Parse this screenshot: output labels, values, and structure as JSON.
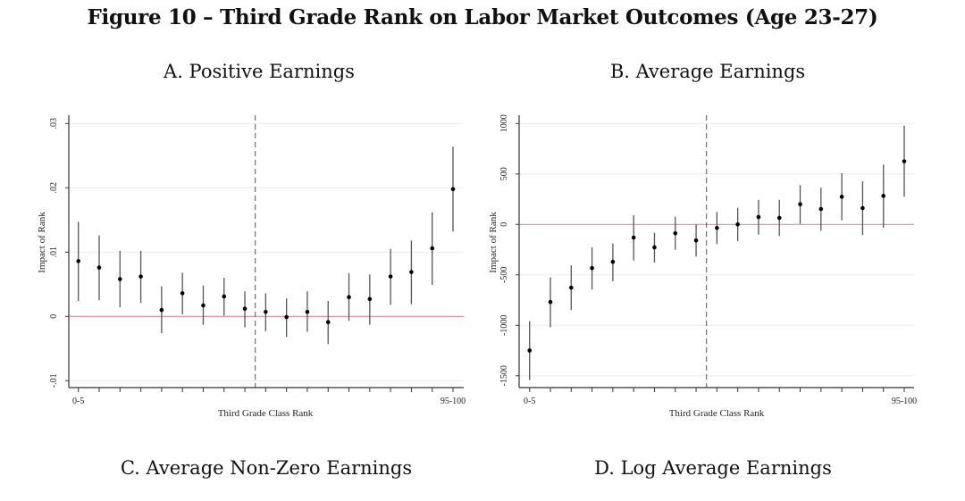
{
  "figure_title": "Figure 10 – Third Grade Rank on Labor Market Outcomes (Age 23-27)",
  "panel_titles": {
    "a": "A. Positive Earnings",
    "b": "B. Average Earnings",
    "c": "C. Average Non-Zero Earnings",
    "d": "D. Log Average Earnings"
  },
  "colors": {
    "zero_line": "#e08a96",
    "grid": "#ececec",
    "point": "#000000",
    "ci": "#555555",
    "axis": "#333333",
    "dashed": "#555555"
  },
  "chart_data": [
    {
      "type": "scatter",
      "title": "A. Positive Earnings",
      "xlabel": "Third Grade Class Rank",
      "ylabel": "Impact of Rank",
      "x_tick_labels": {
        "first": "0-5",
        "last": "95-100"
      },
      "n_bins": 19,
      "cutoff_after_index": 8,
      "ylim": [
        -0.011,
        0.031
      ],
      "y_ticks": [
        -0.01,
        0,
        0.01,
        0.02,
        0.03
      ],
      "y_tick_labels": [
        "-.01",
        "0",
        ".01",
        ".02",
        ".03"
      ],
      "reference_line": 0,
      "grid": true,
      "estimates": [
        0.0086,
        0.0076,
        0.0058,
        0.0062,
        0.001,
        0.0036,
        0.0017,
        0.0031,
        0.0012,
        0.0007,
        -0.0001,
        0.0007,
        -0.0009,
        0.003,
        0.0027,
        0.0062,
        0.0069,
        0.0106,
        0.0198
      ],
      "ci_upper": [
        0.0147,
        0.0126,
        0.0102,
        0.0102,
        0.0047,
        0.0068,
        0.0048,
        0.006,
        0.0039,
        0.0036,
        0.0028,
        0.0039,
        0.0024,
        0.0067,
        0.0065,
        0.0105,
        0.0118,
        0.0162,
        0.0264
      ],
      "ci_lower": [
        0.0024,
        0.0025,
        0.0014,
        0.0021,
        -0.0026,
        0.0003,
        -0.0013,
        0.0001,
        -0.0017,
        -0.0023,
        -0.0032,
        -0.0024,
        -0.0043,
        -0.0007,
        -0.0013,
        0.0018,
        0.0019,
        0.0049,
        0.0132
      ]
    },
    {
      "type": "scatter",
      "title": "B. Average Earnings",
      "xlabel": "Third Grade Class Rank",
      "ylabel": "Impact of Rank",
      "x_tick_labels": {
        "first": "0-5",
        "last": "95-100"
      },
      "n_bins": 19,
      "cutoff_after_index": 8,
      "ylim": [
        -1620,
        1080
      ],
      "y_ticks": [
        -1500,
        -1000,
        -500,
        0,
        500,
        1000
      ],
      "y_tick_labels": [
        "-1500",
        "-1000",
        "-500",
        "0",
        "500",
        "1000"
      ],
      "reference_line": 0,
      "grid": true,
      "estimates": [
        -1249,
        -769,
        -627,
        -433,
        -371,
        -130,
        -227,
        -88,
        -159,
        -35,
        0,
        73,
        65,
        200,
        153,
        274,
        162,
        283,
        625
      ],
      "ci_upper": [
        -960,
        -525,
        -406,
        -227,
        -189,
        91,
        -83,
        76,
        0,
        124,
        165,
        244,
        244,
        389,
        365,
        507,
        427,
        593,
        979
      ],
      "ci_lower": [
        -1543,
        -1019,
        -848,
        -645,
        -563,
        -357,
        -377,
        -251,
        -318,
        -195,
        -165,
        -101,
        -115,
        5,
        -62,
        41,
        -106,
        -33,
        274
      ]
    }
  ]
}
